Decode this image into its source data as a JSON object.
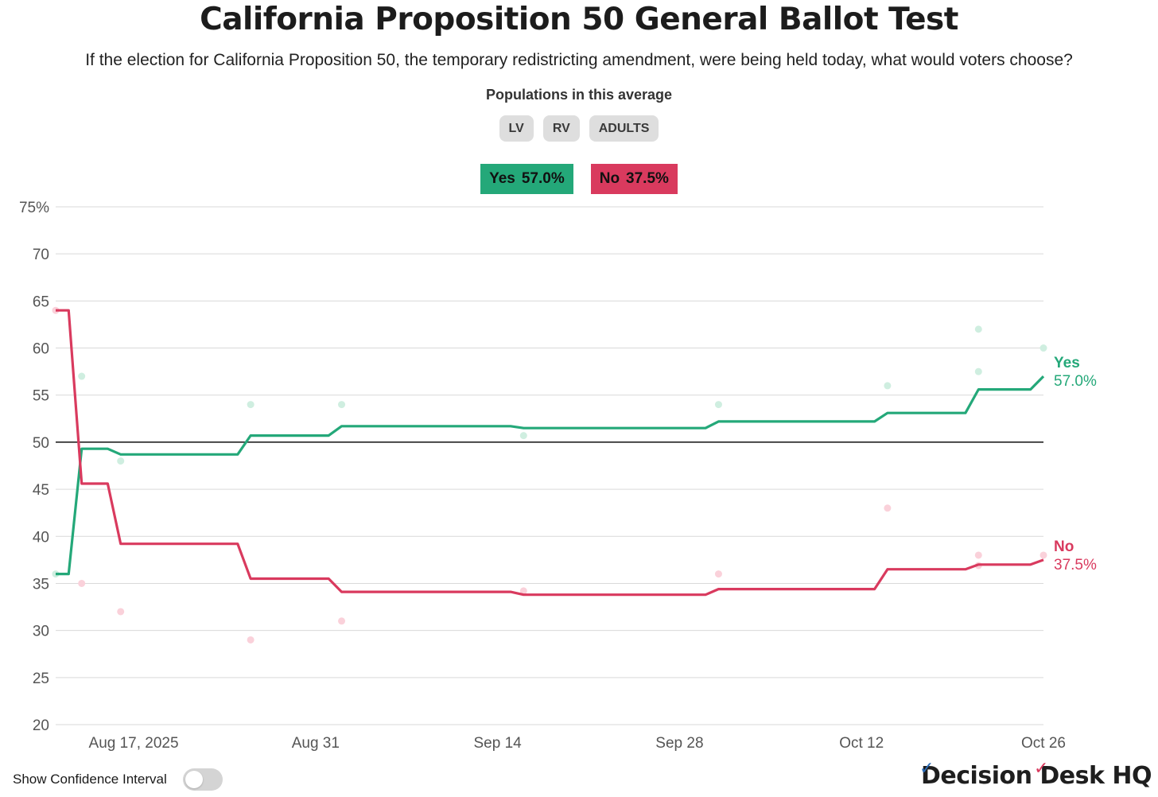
{
  "header": {
    "title": "California Proposition 50 General Ballot Test",
    "subtitle": "If the election for California Proposition 50, the temporary redistricting amendment, were being held today, what would voters choose?",
    "populations_label": "Populations in this average",
    "population_chips": [
      "LV",
      "RV",
      "ADULTS"
    ]
  },
  "legend": {
    "yes_label": "Yes",
    "yes_value": "57.0%",
    "no_label": "No",
    "no_value": "37.5%"
  },
  "footer": {
    "toggle_label": "Show Confidence Interval",
    "toggle_on": false,
    "brand": "Decision Desk HQ"
  },
  "colors": {
    "yes": "#24a879",
    "no": "#d93a5e",
    "yes_point": "#cfeee0",
    "no_point": "#fad1da",
    "grid": "#d9d9d9",
    "chip_bg": "#dedede"
  },
  "chart_data": {
    "type": "line",
    "ylim": [
      20,
      75
    ],
    "y_ticks": [
      20,
      25,
      30,
      35,
      40,
      45,
      50,
      55,
      60,
      65,
      70,
      75
    ],
    "y_tick_labels": [
      "20",
      "25",
      "30",
      "35",
      "40",
      "45",
      "50",
      "55",
      "60",
      "65",
      "70",
      "75%"
    ],
    "xlim": [
      "2025-08-11",
      "2025-10-26"
    ],
    "x_ticks": [
      "2025-08-17",
      "2025-08-31",
      "2025-09-14",
      "2025-09-28",
      "2025-10-12",
      "2025-10-26"
    ],
    "x_tick_labels": [
      "Aug 17, 2025",
      "Aug 31",
      "Sep 14",
      "Sep 28",
      "Oct 12",
      "Oct 26"
    ],
    "reference_line": 50,
    "grid": true,
    "end_labels": [
      {
        "name": "Yes",
        "value": "57.0%"
      },
      {
        "name": "No",
        "value": "37.5%"
      }
    ],
    "series": [
      {
        "name": "Yes",
        "color": "#24a879",
        "points": [
          [
            "2025-08-11",
            36.0
          ],
          [
            "2025-08-12",
            36.0
          ],
          [
            "2025-08-13",
            49.3
          ],
          [
            "2025-08-15",
            49.3
          ],
          [
            "2025-08-16",
            48.7
          ],
          [
            "2025-08-25",
            48.7
          ],
          [
            "2025-08-26",
            50.7
          ],
          [
            "2025-09-01",
            50.7
          ],
          [
            "2025-09-02",
            51.7
          ],
          [
            "2025-09-15",
            51.7
          ],
          [
            "2025-09-16",
            51.5
          ],
          [
            "2025-09-30",
            51.5
          ],
          [
            "2025-10-01",
            52.2
          ],
          [
            "2025-10-13",
            52.2
          ],
          [
            "2025-10-14",
            53.1
          ],
          [
            "2025-10-20",
            53.1
          ],
          [
            "2025-10-21",
            55.6
          ],
          [
            "2025-10-25",
            55.6
          ],
          [
            "2025-10-26",
            57.0
          ]
        ],
        "polls": [
          [
            "2025-08-13",
            57
          ],
          [
            "2025-08-16",
            48
          ],
          [
            "2025-08-26",
            54
          ],
          [
            "2025-09-02",
            54
          ],
          [
            "2025-09-16",
            50.7
          ],
          [
            "2025-10-01",
            54
          ],
          [
            "2025-10-14",
            56
          ],
          [
            "2025-10-21",
            62
          ],
          [
            "2025-10-21",
            57.5
          ],
          [
            "2025-10-26",
            60
          ],
          [
            "2025-08-11",
            36
          ]
        ]
      },
      {
        "name": "No",
        "color": "#d93a5e",
        "points": [
          [
            "2025-08-11",
            64.0
          ],
          [
            "2025-08-12",
            64.0
          ],
          [
            "2025-08-13",
            45.6
          ],
          [
            "2025-08-15",
            45.6
          ],
          [
            "2025-08-16",
            39.2
          ],
          [
            "2025-08-25",
            39.2
          ],
          [
            "2025-08-26",
            35.5
          ],
          [
            "2025-09-01",
            35.5
          ],
          [
            "2025-09-02",
            34.1
          ],
          [
            "2025-09-15",
            34.1
          ],
          [
            "2025-09-16",
            33.8
          ],
          [
            "2025-09-30",
            33.8
          ],
          [
            "2025-10-01",
            34.4
          ],
          [
            "2025-10-13",
            34.4
          ],
          [
            "2025-10-14",
            36.5
          ],
          [
            "2025-10-20",
            36.5
          ],
          [
            "2025-10-21",
            37.0
          ],
          [
            "2025-10-25",
            37.0
          ],
          [
            "2025-10-26",
            37.5
          ]
        ],
        "polls": [
          [
            "2025-08-11",
            64
          ],
          [
            "2025-08-13",
            35
          ],
          [
            "2025-08-16",
            32
          ],
          [
            "2025-08-26",
            29
          ],
          [
            "2025-09-02",
            31
          ],
          [
            "2025-09-16",
            34.2
          ],
          [
            "2025-10-01",
            36
          ],
          [
            "2025-10-14",
            43
          ],
          [
            "2025-10-21",
            38
          ],
          [
            "2025-10-21",
            36.9
          ],
          [
            "2025-10-26",
            38
          ]
        ]
      }
    ]
  }
}
